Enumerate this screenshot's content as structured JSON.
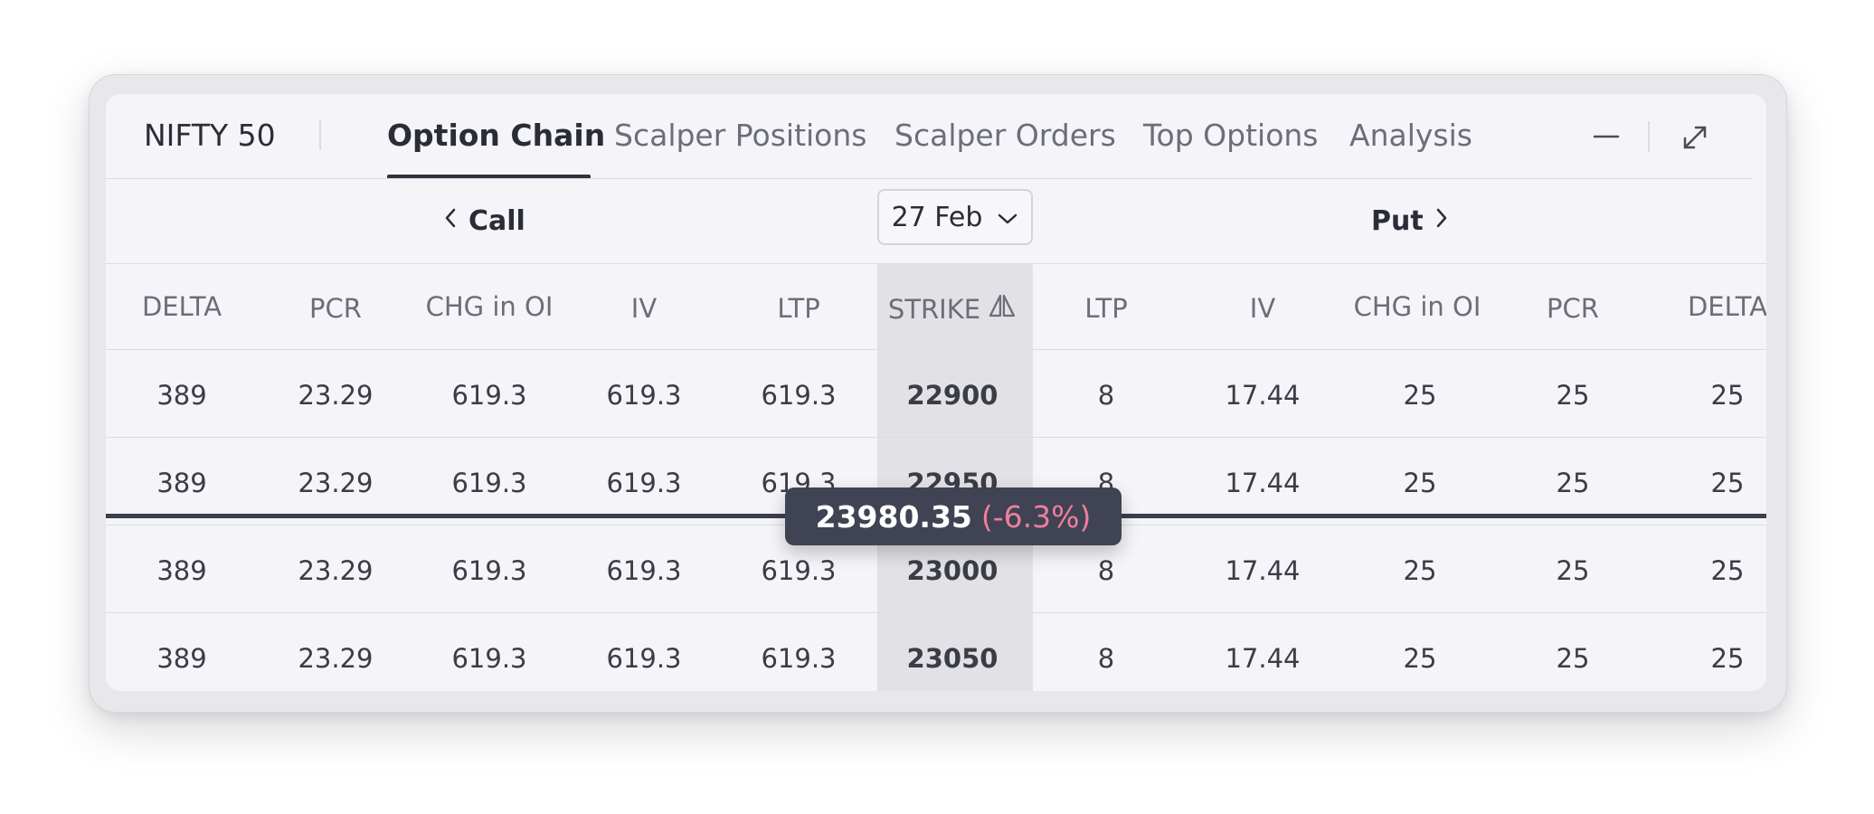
{
  "header": {
    "instrument": "NIFTY 50",
    "tabs": [
      {
        "label": "Option Chain",
        "active": true
      },
      {
        "label": "Scalper Positions",
        "active": false
      },
      {
        "label": "Scalper Orders",
        "active": false
      },
      {
        "label": "Top Options",
        "active": false
      },
      {
        "label": "Analysis",
        "active": false
      }
    ],
    "minimize_icon": "minus-icon",
    "expand_icon": "expand-arrows-icon"
  },
  "subheader": {
    "call_label": "Call",
    "put_label": "Put",
    "expiry_value": "27 Feb"
  },
  "columns": [
    "DELTA",
    "PCR",
    "CHG in OI",
    "IV",
    "LTP",
    "STRIKE",
    "LTP",
    "IV",
    "CHG in OI",
    "PCR",
    "DELTA"
  ],
  "rows": [
    [
      "389",
      "23.29",
      "619.3",
      "619.3",
      "619.3",
      "22900",
      "8",
      "17.44",
      "25",
      "25",
      "25"
    ],
    [
      "389",
      "23.29",
      "619.3",
      "619.3",
      "619.3",
      "22950",
      "8",
      "17.44",
      "25",
      "25",
      "25"
    ],
    [
      "389",
      "23.29",
      "619.3",
      "619.3",
      "619.3",
      "23000",
      "8",
      "17.44",
      "25",
      "25",
      "25"
    ],
    [
      "389",
      "23.29",
      "619.3",
      "619.3",
      "619.3",
      "23050",
      "8",
      "17.44",
      "25",
      "25",
      "25"
    ]
  ],
  "spot": {
    "price": "23980.35",
    "change": "(-6.3%)"
  },
  "colors": {
    "negative": "#f07f9b",
    "badge_bg": "#3f4353",
    "strike_bg": "#e2e2e6"
  }
}
